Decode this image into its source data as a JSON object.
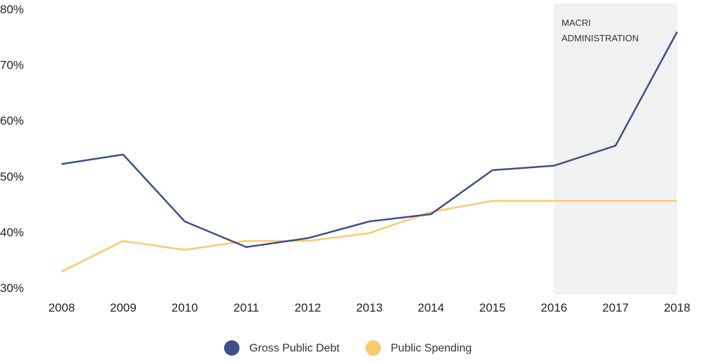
{
  "chart_data": {
    "type": "line",
    "x": [
      2008,
      2009,
      2010,
      2011,
      2012,
      2013,
      2014,
      2015,
      2016,
      2017,
      2018
    ],
    "x_tick_labels": [
      "2008",
      "2009",
      "2010",
      "2011",
      "2012",
      "2013",
      "2014",
      "2015",
      "2016",
      "2017",
      "2018"
    ],
    "y_tick_labels": [
      "30%",
      "40%",
      "50%",
      "60%",
      "70%",
      "80%"
    ],
    "y_ticks": [
      30,
      40,
      50,
      60,
      70,
      80
    ],
    "ylim": [
      30,
      80
    ],
    "xlim": [
      2008,
      2018
    ],
    "grid": false,
    "legend_placement": "bottom",
    "series": [
      {
        "name": "Gross Public Debt",
        "color": "#3d4e88",
        "values": [
          52.2,
          53.9,
          41.9,
          37.3,
          38.9,
          41.9,
          43.2,
          51.1,
          51.9,
          55.5,
          75.9
        ]
      },
      {
        "name": "Public Spending",
        "color": "#fdc96c",
        "values": [
          32.9,
          38.4,
          36.8,
          38.4,
          38.4,
          39.8,
          43.6,
          45.6,
          45.6,
          45.6,
          45.6
        ]
      }
    ],
    "annotation": {
      "lines": [
        "MACRI",
        "ADMINISTRATION"
      ],
      "x_start": 2016,
      "x_end": 2018,
      "shade_color": "#f1f1f1"
    }
  }
}
